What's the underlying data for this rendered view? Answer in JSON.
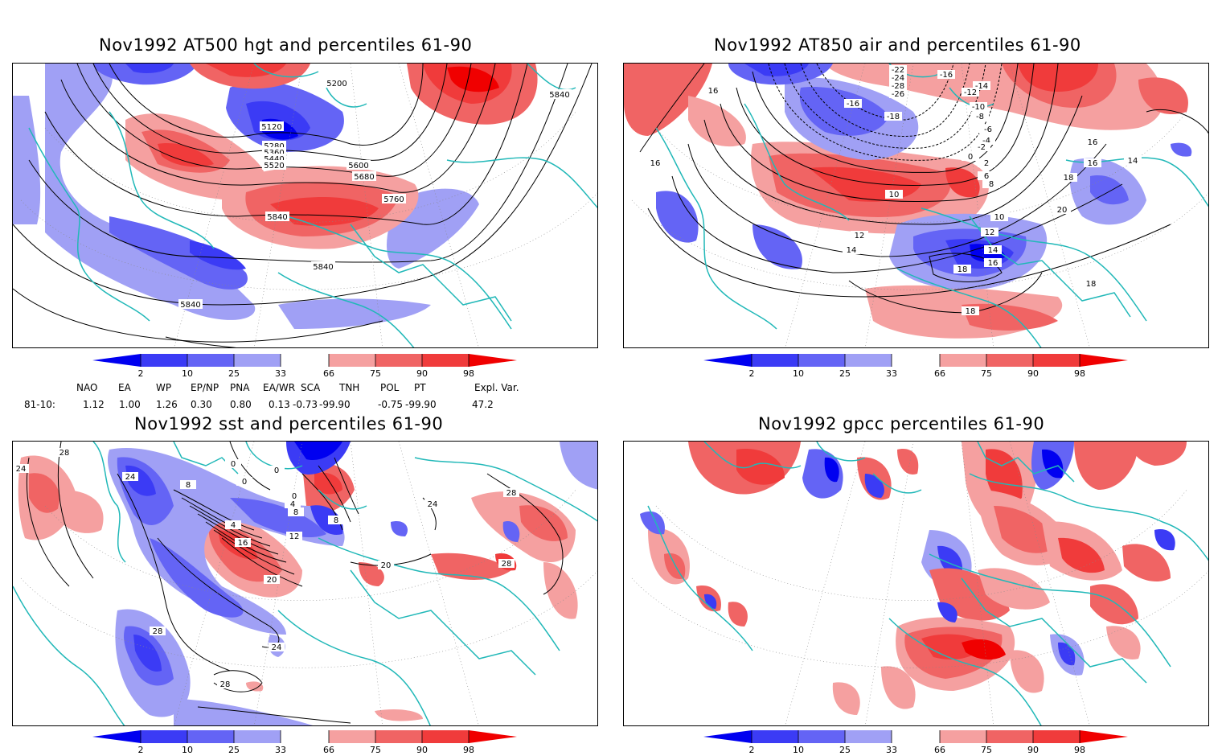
{
  "panels": [
    {
      "title": "Nov1992 AT500 hgt and percentiles 61-90"
    },
    {
      "title": "Nov1992 AT850 air and percentiles 61-90"
    },
    {
      "title": "Nov1992 sst and percentiles 61-90"
    },
    {
      "title": "Nov1992 gpcc percentiles 61-90"
    }
  ],
  "colorbar": {
    "levels": [
      "2",
      "10",
      "25",
      "33",
      "66",
      "75",
      "90",
      "98"
    ],
    "colors": [
      "#0000f0",
      "#3b3bf5",
      "#6464f5",
      "#a0a0f5",
      "#ffffff",
      "#f5a0a0",
      "#f06464",
      "#f03b3b",
      "#f00000"
    ]
  },
  "contour_labels": {
    "hgt": [
      "5200",
      "5120",
      "5280",
      "5360",
      "5440",
      "5520",
      "5600",
      "5680",
      "5760",
      "5840",
      "5840",
      "5840",
      "5840"
    ],
    "air": [
      "-22",
      "-24",
      "-26",
      "-28",
      "-18",
      "-16",
      "-16",
      "-14",
      "-12",
      "-10",
      "-8",
      "-6",
      "-4",
      "-2",
      "0",
      "2",
      "6",
      "8",
      "10",
      "10",
      "12",
      "12",
      "14",
      "14",
      "16",
      "16",
      "16",
      "18",
      "18",
      "18",
      "18",
      "20",
      "14",
      "16",
      "16"
    ],
    "sst": [
      "28",
      "24",
      "24",
      "0",
      "0",
      "0",
      "0",
      "4",
      "8",
      "8",
      "8",
      "4",
      "16",
      "12",
      "20",
      "20",
      "28",
      "28",
      "24",
      "28",
      "28",
      "24"
    ]
  },
  "index_table": {
    "headers": [
      "NAO",
      "EA",
      "WP",
      "EP/NP",
      "PNA",
      "EA/WR",
      "SCA",
      "TNH",
      "POL",
      "PT",
      "Expl. Var."
    ],
    "row_label": "81-10:",
    "values": [
      "1.12",
      "1.00",
      "1.26",
      "0.30",
      "0.80",
      "0.13",
      "-0.73",
      "-99.90",
      "-0.75",
      "-99.90",
      "47.2"
    ]
  }
}
